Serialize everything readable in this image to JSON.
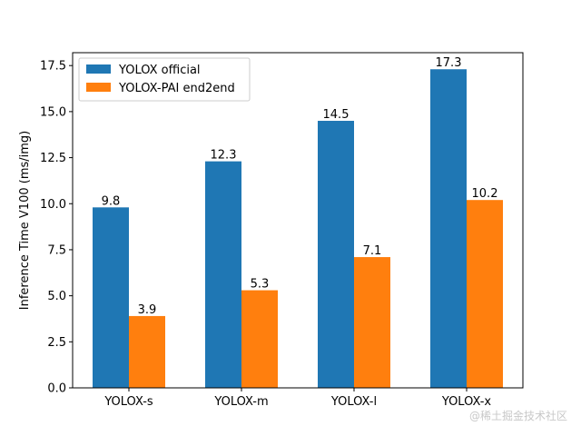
{
  "chart_data": {
    "type": "bar",
    "title": "",
    "xlabel": "",
    "ylabel": "Inference Time V100 (ms/img)",
    "categories": [
      "YOLOX-s",
      "YOLOX-m",
      "YOLOX-l",
      "YOLOX-x"
    ],
    "series": [
      {
        "name": "YOLOX official",
        "color": "#1f77b4",
        "values": [
          9.8,
          12.3,
          14.5,
          17.3
        ]
      },
      {
        "name": "YOLOX-PAI end2end",
        "color": "#ff7f0e",
        "values": [
          3.9,
          5.3,
          7.1,
          10.2
        ]
      }
    ],
    "ylim": [
      0,
      18.2
    ],
    "yticks": [
      0.0,
      2.5,
      5.0,
      7.5,
      10.0,
      12.5,
      15.0,
      17.5
    ],
    "ytick_labels": [
      "0.0",
      "2.5",
      "5.0",
      "7.5",
      "10.0",
      "12.5",
      "15.0",
      "17.5"
    ],
    "grid": false,
    "legend_position": "top-left"
  },
  "watermark": "@稀土掘金技术社区"
}
